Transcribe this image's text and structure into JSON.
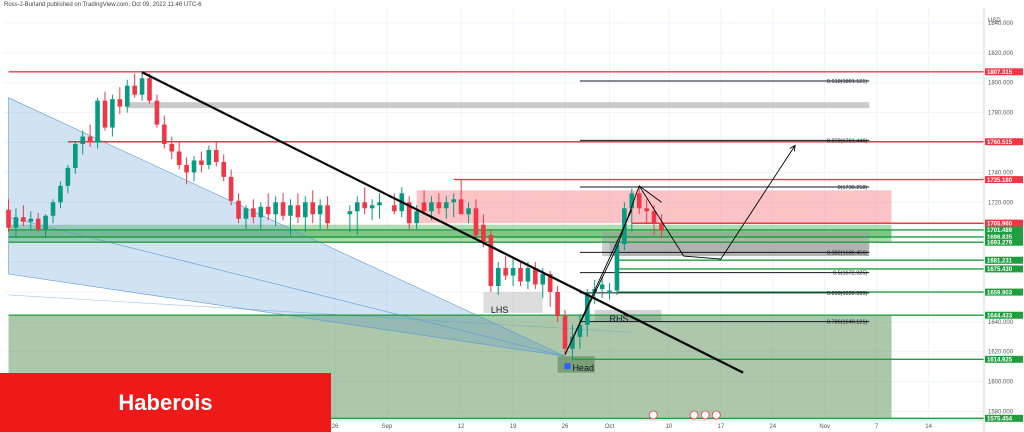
{
  "header": {
    "publisher": "Ross-J-Burland published on TradingView.com, Oct 09, 2022 11:46 UTC-6"
  },
  "watermark": {
    "text": "Haberois"
  },
  "colors": {
    "up": "#089981",
    "down": "#f23645",
    "resistance": "#f23645",
    "support": "#1e9e3e",
    "green_zone": "#4caf50",
    "red_zone": "#f7525f",
    "grey_zone": "#9e9e9e",
    "blue_wedge": "#5b9bd5",
    "trendline": "#000000",
    "watermark_bg": "#ee1a1a"
  },
  "chart_data": {
    "type": "candlestick",
    "currency": "USD",
    "ylim": [
      1575,
      1850
    ],
    "y_ticks": [
      1580,
      1600,
      1620,
      1640,
      1660,
      1680,
      1700,
      1720,
      1740,
      1760,
      1780,
      1800,
      1820,
      1840
    ],
    "x_ticks": [
      {
        "label": "26",
        "x": 0
      },
      {
        "label": "Sep",
        "x": 7
      },
      {
        "label": "12",
        "x": 17
      },
      {
        "label": "19",
        "x": 24
      },
      {
        "label": "26",
        "x": 31
      },
      {
        "label": "Oct",
        "x": 37
      },
      {
        "label": "10",
        "x": 45
      },
      {
        "label": "17",
        "x": 52
      },
      {
        "label": "24",
        "x": 59
      },
      {
        "label": "Nov",
        "x": 66
      },
      {
        "label": "7",
        "x": 73
      },
      {
        "label": "14",
        "x": 80
      }
    ],
    "candles": [
      {
        "x": -44,
        "o": 1715,
        "h": 1722,
        "l": 1700,
        "c": 1703
      },
      {
        "x": -43,
        "o": 1703,
        "h": 1716,
        "l": 1696,
        "c": 1710
      },
      {
        "x": -42,
        "o": 1710,
        "h": 1718,
        "l": 1704,
        "c": 1707
      },
      {
        "x": -41,
        "o": 1707,
        "h": 1714,
        "l": 1701,
        "c": 1709
      },
      {
        "x": -40,
        "o": 1709,
        "h": 1713,
        "l": 1700,
        "c": 1702
      },
      {
        "x": -39,
        "o": 1702,
        "h": 1712,
        "l": 1696,
        "c": 1711
      },
      {
        "x": -38,
        "o": 1711,
        "h": 1722,
        "l": 1706,
        "c": 1720
      },
      {
        "x": -37,
        "o": 1720,
        "h": 1734,
        "l": 1716,
        "c": 1731
      },
      {
        "x": -36,
        "o": 1731,
        "h": 1745,
        "l": 1726,
        "c": 1743
      },
      {
        "x": -35,
        "o": 1743,
        "h": 1761,
        "l": 1739,
        "c": 1759
      },
      {
        "x": -34,
        "o": 1759,
        "h": 1768,
        "l": 1752,
        "c": 1764
      },
      {
        "x": -33,
        "o": 1764,
        "h": 1772,
        "l": 1757,
        "c": 1760
      },
      {
        "x": -32,
        "o": 1760,
        "h": 1790,
        "l": 1756,
        "c": 1788
      },
      {
        "x": -31,
        "o": 1788,
        "h": 1794,
        "l": 1768,
        "c": 1770
      },
      {
        "x": -30,
        "o": 1770,
        "h": 1792,
        "l": 1764,
        "c": 1789
      },
      {
        "x": -29,
        "o": 1789,
        "h": 1797,
        "l": 1779,
        "c": 1784
      },
      {
        "x": -28,
        "o": 1784,
        "h": 1802,
        "l": 1780,
        "c": 1798
      },
      {
        "x": -27,
        "o": 1798,
        "h": 1806,
        "l": 1790,
        "c": 1792
      },
      {
        "x": -26,
        "o": 1792,
        "h": 1807,
        "l": 1788,
        "c": 1803
      },
      {
        "x": -25,
        "o": 1803,
        "h": 1806,
        "l": 1786,
        "c": 1788
      },
      {
        "x": -24,
        "o": 1788,
        "h": 1792,
        "l": 1770,
        "c": 1772
      },
      {
        "x": -23,
        "o": 1772,
        "h": 1778,
        "l": 1756,
        "c": 1759
      },
      {
        "x": -22,
        "o": 1759,
        "h": 1764,
        "l": 1749,
        "c": 1754
      },
      {
        "x": -21,
        "o": 1754,
        "h": 1760,
        "l": 1742,
        "c": 1745
      },
      {
        "x": -20,
        "o": 1745,
        "h": 1750,
        "l": 1732,
        "c": 1740
      },
      {
        "x": -19,
        "o": 1740,
        "h": 1751,
        "l": 1734,
        "c": 1748
      },
      {
        "x": -18,
        "o": 1748,
        "h": 1754,
        "l": 1740,
        "c": 1745
      },
      {
        "x": -17,
        "o": 1745,
        "h": 1758,
        "l": 1742,
        "c": 1755
      },
      {
        "x": -16,
        "o": 1755,
        "h": 1760,
        "l": 1744,
        "c": 1747
      },
      {
        "x": -15,
        "o": 1747,
        "h": 1752,
        "l": 1734,
        "c": 1737
      },
      {
        "x": -14,
        "o": 1737,
        "h": 1742,
        "l": 1718,
        "c": 1721
      },
      {
        "x": -13,
        "o": 1721,
        "h": 1726,
        "l": 1706,
        "c": 1709
      },
      {
        "x": -12,
        "o": 1709,
        "h": 1718,
        "l": 1702,
        "c": 1716
      },
      {
        "x": -11,
        "o": 1716,
        "h": 1722,
        "l": 1706,
        "c": 1710
      },
      {
        "x": -10,
        "o": 1710,
        "h": 1720,
        "l": 1702,
        "c": 1717
      },
      {
        "x": -9,
        "o": 1717,
        "h": 1726,
        "l": 1708,
        "c": 1712
      },
      {
        "x": -8,
        "o": 1712,
        "h": 1724,
        "l": 1704,
        "c": 1720
      },
      {
        "x": -7,
        "o": 1720,
        "h": 1726,
        "l": 1708,
        "c": 1711
      },
      {
        "x": -6,
        "o": 1711,
        "h": 1722,
        "l": 1698,
        "c": 1718
      },
      {
        "x": -5,
        "o": 1718,
        "h": 1726,
        "l": 1706,
        "c": 1710
      },
      {
        "x": -4,
        "o": 1710,
        "h": 1724,
        "l": 1700,
        "c": 1720
      },
      {
        "x": -3,
        "o": 1720,
        "h": 1728,
        "l": 1706,
        "c": 1712
      },
      {
        "x": -2,
        "o": 1712,
        "h": 1722,
        "l": 1702,
        "c": 1718
      },
      {
        "x": -1,
        "o": 1718,
        "h": 1724,
        "l": 1702,
        "c": 1706
      },
      {
        "x": 2,
        "o": 1712,
        "h": 1718,
        "l": 1700,
        "c": 1714
      },
      {
        "x": 3,
        "o": 1714,
        "h": 1724,
        "l": 1698,
        "c": 1720
      },
      {
        "x": 4,
        "o": 1720,
        "h": 1730,
        "l": 1712,
        "c": 1716
      },
      {
        "x": 5,
        "o": 1716,
        "h": 1722,
        "l": 1708,
        "c": 1718
      },
      {
        "x": 6,
        "o": 1718,
        "h": 1726,
        "l": 1709,
        "c": 1720
      },
      {
        "x": 8,
        "o": 1718,
        "h": 1726,
        "l": 1712,
        "c": 1714
      },
      {
        "x": 9,
        "o": 1714,
        "h": 1730,
        "l": 1710,
        "c": 1726
      },
      {
        "x": 10,
        "o": 1720,
        "h": 1724,
        "l": 1702,
        "c": 1706
      },
      {
        "x": 11,
        "o": 1706,
        "h": 1718,
        "l": 1702,
        "c": 1714
      },
      {
        "x": 12,
        "o": 1720,
        "h": 1728,
        "l": 1712,
        "c": 1714
      },
      {
        "x": 13,
        "o": 1714,
        "h": 1724,
        "l": 1708,
        "c": 1720
      },
      {
        "x": 14,
        "o": 1720,
        "h": 1726,
        "l": 1712,
        "c": 1716
      },
      {
        "x": 15,
        "o": 1716,
        "h": 1724,
        "l": 1709,
        "c": 1720
      },
      {
        "x": 16,
        "o": 1720,
        "h": 1726,
        "l": 1710,
        "c": 1722
      },
      {
        "x": 17,
        "o": 1722,
        "h": 1735,
        "l": 1714,
        "c": 1712
      },
      {
        "x": 18,
        "o": 1712,
        "h": 1720,
        "l": 1706,
        "c": 1716
      },
      {
        "x": 19,
        "o": 1716,
        "h": 1722,
        "l": 1696,
        "c": 1698
      },
      {
        "x": 20,
        "o": 1705,
        "h": 1712,
        "l": 1690,
        "c": 1694
      },
      {
        "x": 21,
        "o": 1698,
        "h": 1702,
        "l": 1660,
        "c": 1664
      },
      {
        "x": 22,
        "o": 1664,
        "h": 1680,
        "l": 1658,
        "c": 1676
      },
      {
        "x": 23,
        "o": 1676,
        "h": 1684,
        "l": 1668,
        "c": 1671
      },
      {
        "x": 24,
        "o": 1671,
        "h": 1682,
        "l": 1664,
        "c": 1676
      },
      {
        "x": 25,
        "o": 1676,
        "h": 1680,
        "l": 1664,
        "c": 1667
      },
      {
        "x": 26,
        "o": 1667,
        "h": 1680,
        "l": 1662,
        "c": 1676
      },
      {
        "x": 27,
        "o": 1676,
        "h": 1680,
        "l": 1662,
        "c": 1665
      },
      {
        "x": 28,
        "o": 1665,
        "h": 1676,
        "l": 1656,
        "c": 1672
      },
      {
        "x": 29,
        "o": 1672,
        "h": 1674,
        "l": 1650,
        "c": 1660
      },
      {
        "x": 30,
        "o": 1660,
        "h": 1664,
        "l": 1640,
        "c": 1644
      },
      {
        "x": 31,
        "o": 1644,
        "h": 1648,
        "l": 1618,
        "c": 1622
      },
      {
        "x": 32,
        "o": 1622,
        "h": 1638,
        "l": 1614,
        "c": 1630
      },
      {
        "x": 33,
        "o": 1630,
        "h": 1645,
        "l": 1622,
        "c": 1638
      },
      {
        "x": 34,
        "o": 1638,
        "h": 1662,
        "l": 1630,
        "c": 1659
      },
      {
        "x": 35,
        "o": 1659,
        "h": 1668,
        "l": 1652,
        "c": 1662
      },
      {
        "x": 36,
        "o": 1662,
        "h": 1670,
        "l": 1656,
        "c": 1665
      },
      {
        "x": 37,
        "o": 1660,
        "h": 1666,
        "l": 1655,
        "c": 1661
      },
      {
        "x": 38,
        "o": 1661,
        "h": 1695,
        "l": 1658,
        "c": 1692
      },
      {
        "x": 39,
        "o": 1692,
        "h": 1720,
        "l": 1688,
        "c": 1716
      },
      {
        "x": 40,
        "o": 1716,
        "h": 1729,
        "l": 1700,
        "c": 1726
      },
      {
        "x": 41,
        "o": 1726,
        "h": 1730,
        "l": 1712,
        "c": 1716
      },
      {
        "x": 42,
        "o": 1716,
        "h": 1722,
        "l": 1706,
        "c": 1714
      },
      {
        "x": 43,
        "o": 1714,
        "h": 1718,
        "l": 1698,
        "c": 1706
      },
      {
        "x": 44,
        "o": 1706,
        "h": 1712,
        "l": 1696,
        "c": 1701
      }
    ],
    "zones": [
      {
        "kind": "resistance",
        "x0": 11,
        "x1": 75,
        "y0": 1706,
        "y1": 1728
      },
      {
        "kind": "support",
        "x0": -44,
        "x1": 75,
        "y0": 1693,
        "y1": 1705
      },
      {
        "kind": "support",
        "x0": -44,
        "x1": 75,
        "y0": 1696,
        "y1": 1701
      },
      {
        "kind": "neutral",
        "x0": -28,
        "x1": 72,
        "y0": 1783,
        "y1": 1787
      },
      {
        "kind": "neutral",
        "x0": 36,
        "x1": 72,
        "y0": 1684,
        "y1": 1700
      },
      {
        "kind": "neutral",
        "x0": 37,
        "x1": 72,
        "y0": 1684,
        "y1": 1693
      },
      {
        "kind": "lhs_box",
        "x0": 20,
        "x1": 28,
        "y0": 1646,
        "y1": 1660
      },
      {
        "kind": "rhs_box",
        "x0": 35,
        "x1": 44,
        "y0": 1640,
        "y1": 1648
      },
      {
        "kind": "head_box",
        "x0": 30,
        "x1": 35,
        "y0": 1606,
        "y1": 1617
      },
      {
        "kind": "lower_zone",
        "x0": -44,
        "x1": 75,
        "y0": 1576,
        "y1": 1644
      },
      {
        "kind": "wedge",
        "x0": -44,
        "x1": 31,
        "y0": 1617,
        "y1": 1790
      }
    ],
    "horizontal_levels": [
      {
        "value": 1807.315,
        "label": "1807.315",
        "color": "#f23645",
        "x0": -44
      },
      {
        "value": 1760.515,
        "label": "1760.515",
        "color": "#f23645",
        "x0": -36
      },
      {
        "value": 1735.18,
        "label": "1735.180",
        "color": "#f23645",
        "x0": 16
      },
      {
        "value": 1706.009,
        "label": "1706.009",
        "color": "#f23645",
        "x0": 40
      },
      {
        "value": 1705.96,
        "label": "1705.960",
        "color": "#f23645",
        "x0": 40
      },
      {
        "value": 1701.489,
        "label": "1701.489",
        "color": "#1e9e3e",
        "x0": -44
      },
      {
        "value": 1696.835,
        "label": "1696.835",
        "color": "#1e9e3e",
        "x0": -44
      },
      {
        "value": 1693.279,
        "label": "1693.279",
        "color": "#1e9e3e",
        "x0": -44
      },
      {
        "value": 1681.231,
        "label": "1681.231",
        "color": "#1e9e3e",
        "x0": 38
      },
      {
        "value": 1675.43,
        "label": "1675.430",
        "color": "#1e9e3e",
        "x0": 38
      },
      {
        "value": 1659.903,
        "label": "1659.903",
        "color": "#1e9e3e",
        "x0": 38
      },
      {
        "value": 1644.433,
        "label": "1644.433",
        "color": "#1e9e3e",
        "x0": -44
      },
      {
        "value": 1614.925,
        "label": "1614.925",
        "color": "#1e9e3e",
        "x0": 32
      },
      {
        "value": 1575.454,
        "label": "1575.454",
        "color": "#1e9e3e",
        "x0": -44
      }
    ],
    "fib_levels": [
      {
        "value": 1801.121,
        "label": "0.618(1801.121)",
        "x0": 33
      },
      {
        "value": 1761.446,
        "label": "0.272(1761.446)",
        "x0": 33
      },
      {
        "value": 1730.258,
        "label": "0(1730.258)",
        "x0": 33
      },
      {
        "value": 1686.456,
        "label": "0.382(1686.456)",
        "x0": 33
      },
      {
        "value": 1672.925,
        "label": "0.5(1672.925)",
        "x0": 33
      },
      {
        "value": 1659.395,
        "label": "0.618(1659.395)",
        "x0": 33
      },
      {
        "value": 1640.121,
        "label": "0.786(1640.121)",
        "x0": 33
      }
    ],
    "trendlines": [
      {
        "role": "main",
        "x0": -26,
        "y0": 1807,
        "x1": 55,
        "y1": 1606
      },
      {
        "role": "path",
        "points": [
          [
            31,
            1618
          ],
          [
            38,
            1690
          ],
          [
            41,
            1731
          ],
          [
            47,
            1684
          ],
          [
            52,
            1682
          ],
          [
            62,
            1758
          ]
        ]
      },
      {
        "role": "path",
        "points": [
          [
            41,
            1731
          ],
          [
            44,
            1720
          ]
        ]
      },
      {
        "role": "path",
        "points": [
          [
            31,
            1618
          ],
          [
            40,
            1715
          ]
        ]
      }
    ],
    "pattern_labels": [
      {
        "text": "LHS",
        "x": 21,
        "y": 1646
      },
      {
        "text": "Head",
        "x": 32,
        "y": 1607
      },
      {
        "text": "RHS",
        "x": 37,
        "y": 1640
      }
    ]
  }
}
